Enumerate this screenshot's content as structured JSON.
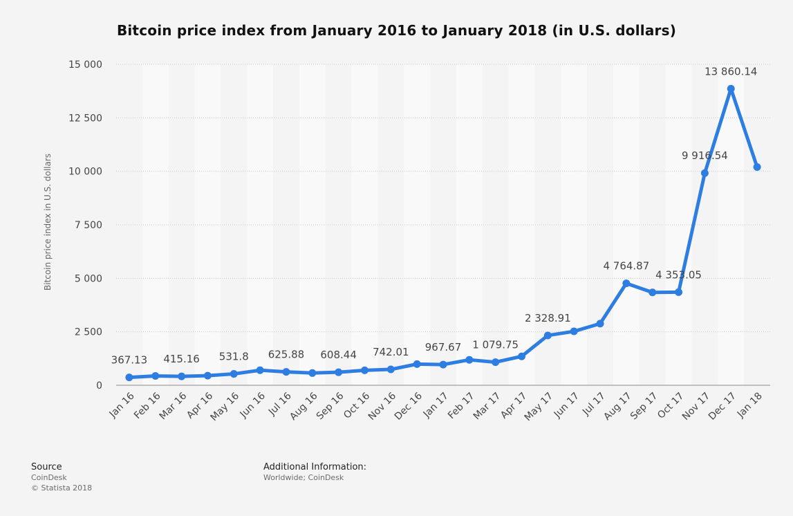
{
  "chart_data": {
    "type": "line",
    "title": "Bitcoin price index from January 2016 to January 2018 (in U.S. dollars)",
    "xlabel": "",
    "ylabel": "Bitcoin price index in U.S. dollars",
    "ylim": [
      0,
      15000
    ],
    "yticks": [
      0,
      2500,
      5000,
      7500,
      10000,
      12500,
      15000
    ],
    "ytick_labels": [
      "0",
      "2 500",
      "5 000",
      "7 500",
      "10 000",
      "12 500",
      "15 000"
    ],
    "grid": true,
    "legend": "none",
    "categories": [
      "Jan 16",
      "Feb 16",
      "Mar 16",
      "Apr 16",
      "May 16",
      "Jun 16",
      "Jul 16",
      "Aug 16",
      "Sep 16",
      "Oct 16",
      "Nov 16",
      "Dec 16",
      "Jan 17",
      "Feb 17",
      "Mar 17",
      "Apr 17",
      "May 17",
      "Jun 17",
      "Jul 17",
      "Aug 17",
      "Sep 17",
      "Oct 17",
      "Nov 17",
      "Dec 17",
      "Jan 18"
    ],
    "series": [
      {
        "values": [
          367.13,
          437,
          415.16,
          450,
          531.8,
          704,
          625.88,
          572,
          608.44,
          700,
          742.01,
          990,
          967.67,
          1190,
          1079.75,
          1350,
          2328.91,
          2520,
          2880,
          4764.87,
          4340,
          4353.05,
          9916.54,
          13860.14,
          10200
        ]
      }
    ],
    "data_labels": [
      {
        "index": 0,
        "text": "367.13"
      },
      {
        "index": 2,
        "text": "415.16"
      },
      {
        "index": 4,
        "text": "531.8"
      },
      {
        "index": 6,
        "text": "625.88"
      },
      {
        "index": 8,
        "text": "608.44"
      },
      {
        "index": 10,
        "text": "742.01"
      },
      {
        "index": 12,
        "text": "967.67"
      },
      {
        "index": 14,
        "text": "1 079.75"
      },
      {
        "index": 16,
        "text": "2 328.91"
      },
      {
        "index": 19,
        "text": "4 764.87"
      },
      {
        "index": 21,
        "text": "4 353.05"
      },
      {
        "index": 22,
        "text": "9 916.54"
      },
      {
        "index": 23,
        "text": "13 860.14"
      }
    ],
    "colors": {
      "line": "#2e7de1",
      "band": "#f9f9f9",
      "grid": "#c8c8c8",
      "axis": "#8a8a8a",
      "label": "#444444"
    }
  },
  "footer": {
    "source_heading": "Source",
    "source_lines": [
      "CoinDesk",
      "© Statista 2018"
    ],
    "info_heading": "Additional Information:",
    "info_lines": [
      "Worldwide; CoinDesk"
    ]
  }
}
